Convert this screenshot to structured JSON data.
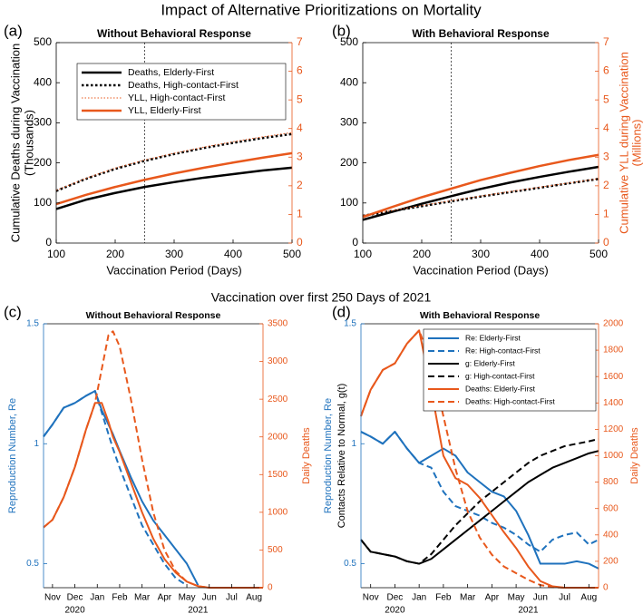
{
  "figure_title": "Impact of Alternative Prioritizations on Mortality",
  "section_title": "Vaccination over first 250 Days of 2021",
  "chart_data": [
    {
      "type": "line",
      "panel": "(a)",
      "title": "Without Behavioral Response",
      "xlabel": "Vaccination Period (Days)",
      "ylabel": [
        "Cumulative Deaths during Vaccination",
        "(Thousands)"
      ],
      "x": [
        100,
        150,
        200,
        250,
        300,
        350,
        400,
        450,
        500
      ],
      "xlim": [
        100,
        500
      ],
      "xticks": [
        100,
        200,
        300,
        400,
        500
      ],
      "ylim": [
        0,
        500
      ],
      "yticks": [
        0,
        100,
        200,
        300,
        400,
        500
      ],
      "y2lim": [
        0,
        7
      ],
      "y2ticks": [
        0,
        1,
        2,
        3,
        4,
        5,
        6,
        7
      ],
      "ycolor": "#000000",
      "y2color": "#e8581c",
      "vline": 250,
      "legend": "north",
      "series": [
        {
          "name": "Deaths, Elderly-First",
          "color": "#000000",
          "style": "solid",
          "linewidth": 2.5,
          "values": [
            85,
            108,
            125,
            140,
            152,
            163,
            172,
            181,
            188
          ]
        },
        {
          "name": "Deaths, High-contact-First",
          "color": "#000000",
          "style": "dotted",
          "linewidth": 2.5,
          "values": [
            130,
            160,
            185,
            205,
            222,
            237,
            250,
            262,
            272
          ]
        },
        {
          "name": "YLL, High-contact-First",
          "color": "#e8581c",
          "style": "dotted",
          "linewidth": 1,
          "axis": "y2",
          "values": [
            1.84,
            2.26,
            2.62,
            2.9,
            3.14,
            3.35,
            3.54,
            3.71,
            3.86
          ]
        },
        {
          "name": "YLL, Elderly-First",
          "color": "#e8581c",
          "style": "solid",
          "linewidth": 2.5,
          "axis": "y2",
          "values": [
            1.36,
            1.68,
            1.96,
            2.21,
            2.43,
            2.63,
            2.81,
            2.98,
            3.14
          ]
        }
      ]
    },
    {
      "type": "line",
      "panel": "(b)",
      "title": "With Behavioral Response",
      "xlabel": "Vaccination Period (Days)",
      "y2label": [
        "Cumulative YLL during Vaccination",
        "(Millions)"
      ],
      "x": [
        100,
        150,
        200,
        250,
        300,
        350,
        400,
        450,
        500
      ],
      "xlim": [
        100,
        500
      ],
      "xticks": [
        100,
        200,
        300,
        400,
        500
      ],
      "ylim": [
        0,
        500
      ],
      "yticks": [
        0,
        100,
        200,
        300,
        400,
        500
      ],
      "y2lim": [
        0,
        7
      ],
      "y2ticks": [
        0,
        1,
        2,
        3,
        4,
        5,
        6,
        7
      ],
      "ycolor": "#000000",
      "y2color": "#e8581c",
      "vline": 250,
      "series": [
        {
          "color": "#000000",
          "style": "solid",
          "linewidth": 2.5,
          "values": [
            58,
            78,
            98,
            117,
            135,
            151,
            165,
            178,
            190
          ]
        },
        {
          "color": "#000000",
          "style": "dotted",
          "linewidth": 2.5,
          "values": [
            68,
            80,
            92,
            104,
            116,
            127,
            138,
            149,
            160
          ]
        },
        {
          "color": "#e8581c",
          "style": "dotted",
          "linewidth": 1,
          "axis": "y2",
          "values": [
            0.97,
            1.14,
            1.31,
            1.48,
            1.64,
            1.8,
            1.95,
            2.1,
            2.25
          ]
        },
        {
          "color": "#e8581c",
          "style": "solid",
          "linewidth": 2.5,
          "axis": "y2",
          "values": [
            0.91,
            1.26,
            1.6,
            1.9,
            2.2,
            2.45,
            2.69,
            2.9,
            3.08
          ]
        }
      ]
    },
    {
      "type": "line",
      "panel": "(c)",
      "title": "Without Behavioral Response",
      "ylabel": [
        "Reproduction Number, Re"
      ],
      "y2label": [
        "Daily Deaths"
      ],
      "xyears": [
        "2020",
        "2021"
      ],
      "x": [
        -0.4,
        0,
        0.5,
        1,
        1.5,
        1.9,
        2.2,
        2.5,
        2.7,
        3,
        3.5,
        4,
        4.5,
        5,
        5.5,
        6,
        6.5,
        7,
        8,
        9,
        9.4
      ],
      "xlim": [
        -0.4,
        9.4
      ],
      "xticks": [
        {
          "value": 0,
          "label": "Nov"
        },
        {
          "value": 1,
          "label": "Dec"
        },
        {
          "value": 2,
          "label": "Jan"
        },
        {
          "value": 3,
          "label": "Feb"
        },
        {
          "value": 4,
          "label": "Mar"
        },
        {
          "value": 5,
          "label": "Apr"
        },
        {
          "value": 6,
          "label": "May"
        },
        {
          "value": 7,
          "label": "Jun"
        },
        {
          "value": 8,
          "label": "Jul"
        },
        {
          "value": 9,
          "label": "Aug"
        }
      ],
      "ylim": [
        0.4,
        1.5
      ],
      "yticks": [
        0.5,
        1,
        1.5
      ],
      "y2lim": [
        0,
        3500
      ],
      "y2ticks": [
        0,
        500,
        1000,
        1500,
        2000,
        2500,
        3000,
        3500
      ],
      "ycolor": "#1f72bd",
      "y2color": "#e8581c",
      "series": [
        {
          "color": "#1f72bd",
          "style": "solid",
          "linewidth": 2,
          "values": [
            1.03,
            1.08,
            1.15,
            1.17,
            1.2,
            1.22,
            1.14,
            1.08,
            1.04,
            0.97,
            0.86,
            0.76,
            0.68,
            0.62,
            0.56,
            0.5,
            0.41,
            null,
            null,
            null,
            null
          ]
        },
        {
          "color": "#1f72bd",
          "style": "dashed",
          "linewidth": 2,
          "values": [
            1.03,
            1.08,
            1.15,
            1.17,
            1.2,
            1.22,
            1.13,
            1.04,
            0.98,
            0.9,
            0.78,
            0.66,
            0.58,
            0.5,
            0.44,
            0.41,
            null,
            null,
            null,
            null,
            null
          ]
        },
        {
          "color": "#e8581c",
          "style": "solid",
          "linewidth": 2,
          "axis": "y2",
          "values": [
            800,
            900,
            1200,
            1600,
            2100,
            2450,
            2450,
            2200,
            2000,
            1800,
            1400,
            1000,
            650,
            380,
            200,
            80,
            20,
            0,
            0,
            0,
            0
          ]
        },
        {
          "color": "#e8581c",
          "style": "dashed",
          "linewidth": 2,
          "axis": "y2",
          "values": [
            800,
            900,
            1200,
            1600,
            2100,
            2450,
            2900,
            3350,
            3400,
            3200,
            2500,
            1700,
            1000,
            500,
            220,
            80,
            20,
            0,
            0,
            0,
            0
          ]
        }
      ]
    },
    {
      "type": "line",
      "panel": "(d)",
      "title": "With Behavioral Response",
      "ylabel": [
        "Reproduction Number, Re"
      ],
      "y3label": "Contacts Relative to Normal, g(t)",
      "y2label": [
        "Daily Deaths"
      ],
      "xyears": [
        "2020",
        "2021"
      ],
      "x": [
        -0.4,
        0,
        0.5,
        1,
        1.5,
        2,
        2.5,
        3,
        3.5,
        4,
        4.5,
        5,
        5.5,
        6,
        6.5,
        7,
        7.5,
        8,
        8.5,
        9,
        9.4
      ],
      "xlim": [
        -0.4,
        9.4
      ],
      "xticks": [
        {
          "value": 0,
          "label": "Nov"
        },
        {
          "value": 1,
          "label": "Dec"
        },
        {
          "value": 2,
          "label": "Jan"
        },
        {
          "value": 3,
          "label": "Feb"
        },
        {
          "value": 4,
          "label": "Mar"
        },
        {
          "value": 5,
          "label": "Apr"
        },
        {
          "value": 6,
          "label": "May"
        },
        {
          "value": 7,
          "label": "Jun"
        },
        {
          "value": 8,
          "label": "Jul"
        },
        {
          "value": 9,
          "label": "Aug"
        }
      ],
      "ylim": [
        0.4,
        1.5
      ],
      "yticks": [
        0.5,
        1,
        1.5
      ],
      "y2lim": [
        0,
        2000
      ],
      "y2ticks": [
        0,
        200,
        400,
        600,
        800,
        1000,
        1200,
        1400,
        1600,
        1800,
        2000
      ],
      "ycolor": "#1f72bd",
      "y2color": "#e8581c",
      "legend": "northeast",
      "series": [
        {
          "name": "Re: Elderly-First",
          "color": "#1f72bd",
          "style": "solid",
          "linewidth": 2,
          "values": [
            1.05,
            1.03,
            1.0,
            1.05,
            0.98,
            0.92,
            0.95,
            0.98,
            0.95,
            0.88,
            0.84,
            0.8,
            0.78,
            0.72,
            0.62,
            0.5,
            0.5,
            0.5,
            0.51,
            0.5,
            0.48
          ]
        },
        {
          "name": "Re: High-contact-First",
          "color": "#1f72bd",
          "style": "dashed",
          "linewidth": 2,
          "values": [
            1.05,
            1.03,
            1.0,
            1.05,
            0.98,
            0.92,
            0.9,
            0.8,
            0.74,
            0.72,
            0.7,
            0.67,
            0.65,
            0.62,
            0.58,
            0.55,
            0.6,
            0.62,
            0.63,
            0.58,
            0.6
          ]
        },
        {
          "name": "g: Elderly-First",
          "color": "#000000",
          "style": "solid",
          "linewidth": 2,
          "values": [
            0.6,
            0.55,
            0.54,
            0.53,
            0.51,
            0.5,
            0.52,
            0.56,
            0.6,
            0.64,
            0.68,
            0.72,
            0.76,
            0.8,
            0.84,
            0.87,
            0.9,
            0.92,
            0.94,
            0.96,
            0.97
          ]
        },
        {
          "name": "g: High-contact-First",
          "color": "#000000",
          "style": "dashed",
          "linewidth": 2,
          "values": [
            0.6,
            0.55,
            0.54,
            0.53,
            0.51,
            0.5,
            0.54,
            0.6,
            0.66,
            0.71,
            0.76,
            0.8,
            0.84,
            0.88,
            0.92,
            0.95,
            0.97,
            0.99,
            1.0,
            1.01,
            1.02
          ]
        },
        {
          "name": "Deaths: Elderly-First",
          "color": "#e8581c",
          "style": "solid",
          "linewidth": 2,
          "axis": "y2",
          "values": [
            1300,
            1500,
            1650,
            1700,
            1850,
            1950,
            1500,
            1000,
            830,
            780,
            680,
            550,
            420,
            300,
            160,
            50,
            10,
            0,
            0,
            0,
            0
          ]
        },
        {
          "name": "Deaths: High-contact-First",
          "color": "#e8581c",
          "style": "dashed",
          "linewidth": 2,
          "axis": "y2",
          "values": [
            1300,
            1500,
            1650,
            1700,
            1850,
            1950,
            1700,
            1300,
            900,
            580,
            380,
            250,
            160,
            110,
            60,
            20,
            5,
            0,
            0,
            0,
            0
          ]
        }
      ]
    }
  ]
}
